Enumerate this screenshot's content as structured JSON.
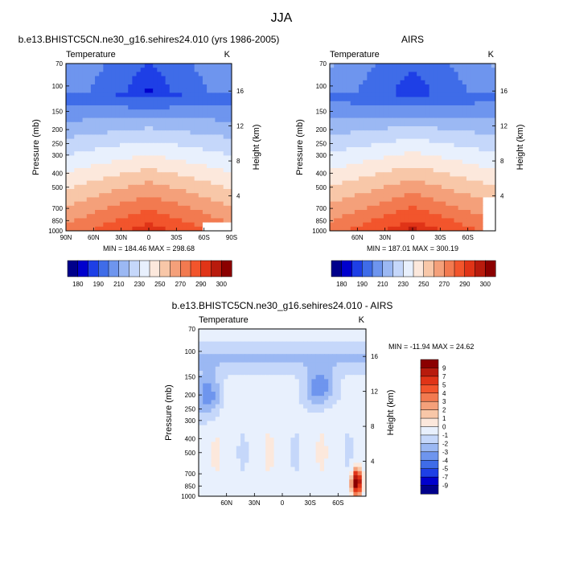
{
  "figure": {
    "title": "JJA"
  },
  "chart_data": [
    {
      "type": "heatmap",
      "id": "model",
      "title": "b.e13.BHISTC5CN.ne30_g16.sehires24.010 (yrs 1986-2005)",
      "left_label": "Temperature",
      "right_label": "K",
      "xlabel": "",
      "ylabel": "Pressure (mb)",
      "y2label": "Height (km)",
      "x_ticks": [
        "90N",
        "60N",
        "30N",
        "0",
        "30S",
        "60S",
        "90S"
      ],
      "y_ticks": [
        "70",
        "100",
        "150",
        "200",
        "250",
        "300",
        "400",
        "500",
        "700",
        "850",
        "1000"
      ],
      "y_tick_values": [
        70,
        100,
        150,
        200,
        250,
        300,
        400,
        500,
        700,
        850,
        1000
      ],
      "y2_ticks": [
        "16",
        "12",
        "8",
        "4"
      ],
      "y2_tick_values": [
        16,
        12,
        8,
        4
      ],
      "ylim": [
        70,
        1000
      ],
      "xlim": [
        90,
        -90
      ],
      "stats": "MIN = 184.46   MAX = 298.68",
      "colorbar_labels": [
        "180",
        "190",
        "210",
        "230",
        "250",
        "270",
        "290",
        "300"
      ],
      "colorbar_colors": [
        "#00008b",
        "#0000cd",
        "#1e3fe6",
        "#3f6ce8",
        "#6e95ee",
        "#9bb8f3",
        "#c5d7fa",
        "#e8f0fd",
        "#fce8dc",
        "#f8c7a8",
        "#f4a07a",
        "#f27a50",
        "#f2552c",
        "#e03417",
        "#b81b0d",
        "#8b0000"
      ],
      "field": "temperature",
      "min": 184.46,
      "max": 298.68
    },
    {
      "type": "heatmap",
      "id": "airs",
      "title": "AIRS",
      "left_label": "Temperature",
      "right_label": "K",
      "xlabel": "",
      "ylabel": "Pressure (mb)",
      "y2label": "Height (km)",
      "x_ticks": [
        "60N",
        "30N",
        "0",
        "30S",
        "60S"
      ],
      "y_ticks": [
        "70",
        "100",
        "150",
        "200",
        "250",
        "300",
        "400",
        "500",
        "700",
        "850",
        "1000"
      ],
      "y_tick_values": [
        70,
        100,
        150,
        200,
        250,
        300,
        400,
        500,
        700,
        850,
        1000
      ],
      "y2_ticks": [
        "16",
        "12",
        "8",
        "4"
      ],
      "y2_tick_values": [
        16,
        12,
        8,
        4
      ],
      "ylim": [
        70,
        1000
      ],
      "xlim": [
        90,
        -90
      ],
      "stats": "MIN = 187.01   MAX = 300.19",
      "colorbar_labels": [
        "180",
        "190",
        "210",
        "230",
        "250",
        "270",
        "290",
        "300"
      ],
      "colorbar_colors": [
        "#00008b",
        "#0000cd",
        "#1e3fe6",
        "#3f6ce8",
        "#6e95ee",
        "#9bb8f3",
        "#c5d7fa",
        "#e8f0fd",
        "#fce8dc",
        "#f8c7a8",
        "#f4a07a",
        "#f27a50",
        "#f2552c",
        "#e03417",
        "#b81b0d",
        "#8b0000"
      ],
      "field": "temperature",
      "min": 187.01,
      "max": 300.19
    },
    {
      "type": "heatmap",
      "id": "diff",
      "title": "b.e13.BHISTC5CN.ne30_g16.sehires24.010 - AIRS",
      "left_label": "Temperature",
      "right_label": "K",
      "xlabel": "",
      "ylabel": "Pressure (mb)",
      "y2label": "Height (km)",
      "x_ticks": [
        "60N",
        "30N",
        "0",
        "30S",
        "60S"
      ],
      "y_ticks": [
        "70",
        "100",
        "150",
        "200",
        "250",
        "300",
        "400",
        "500",
        "700",
        "850",
        "1000"
      ],
      "y_tick_values": [
        70,
        100,
        150,
        200,
        250,
        300,
        400,
        500,
        700,
        850,
        1000
      ],
      "y2_ticks": [
        "16",
        "12",
        "8",
        "4"
      ],
      "y2_tick_values": [
        16,
        12,
        8,
        4
      ],
      "ylim": [
        70,
        1000
      ],
      "xlim": [
        90,
        -90
      ],
      "stats": "MIN = -11.94  MAX =  24.62",
      "colorbar_labels": [
        "9",
        "7",
        "5",
        "4",
        "3",
        "2",
        "1",
        "0",
        "-1",
        "-2",
        "-3",
        "-4",
        "-5",
        "-7",
        "-9"
      ],
      "colorbar_colors": [
        "#8b0000",
        "#b81b0d",
        "#e03417",
        "#f2552c",
        "#f27a50",
        "#f4a07a",
        "#f8c7a8",
        "#fce8dc",
        "#e8f0fd",
        "#c5d7fa",
        "#9bb8f3",
        "#6e95ee",
        "#3f6ce8",
        "#1e3fe6",
        "#0000cd",
        "#00008b"
      ],
      "field": "difference",
      "min": -11.94,
      "max": 24.62
    }
  ]
}
